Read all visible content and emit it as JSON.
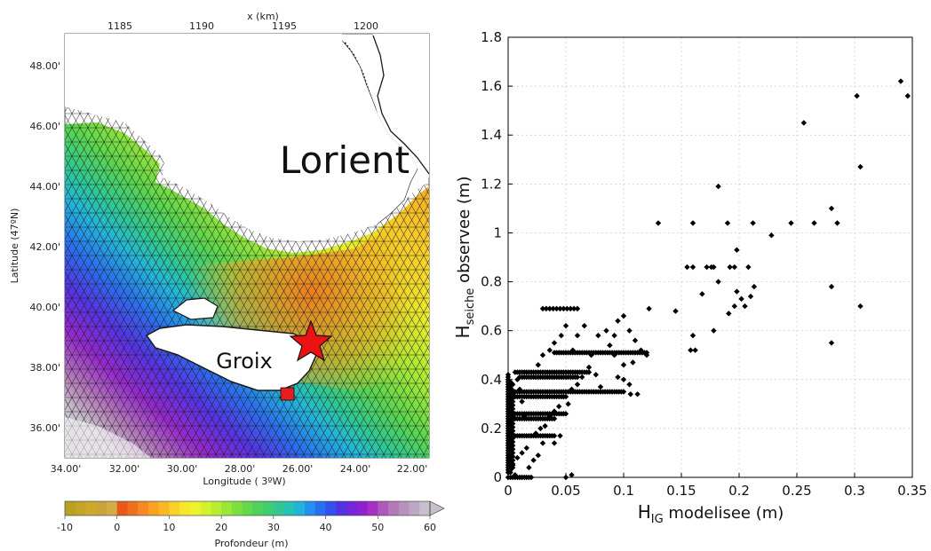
{
  "map_panel": {
    "x_km_label": "x (km)",
    "x_km_ticks": [
      "1185",
      "1190",
      "1195",
      "1200"
    ],
    "lat_ticks": [
      "48.00'",
      "46.00'",
      "44.00'",
      "42.00'",
      "40.00'",
      "38.00'",
      "36.00'"
    ],
    "lon_ticks": [
      "34.00'",
      "32.00'",
      "30.00'",
      "28.00'",
      "26.00'",
      "24.00'",
      "22.00'"
    ],
    "ylabel": "Latitude (47ºN)",
    "xlabel": "Longitude (  3ºW)",
    "place_labels": [
      "Lorient",
      "Groix"
    ],
    "colorbar": {
      "label": "Profondeur (m)",
      "ticks": [
        "-10",
        "0",
        "10",
        "20",
        "30",
        "40",
        "50",
        "60"
      ],
      "min": -10,
      "max": 60,
      "colors": [
        "#b8a020",
        "#c4a426",
        "#cfa82e",
        "#c9a43a",
        "#d2ac46",
        "#e8581a",
        "#f07020",
        "#f58a22",
        "#f9a222",
        "#fbb826",
        "#fad02a",
        "#f7e62c",
        "#eef22c",
        "#d6f22e",
        "#b8ee32",
        "#98e838",
        "#7ee040",
        "#62d84a",
        "#4ed25a",
        "#40cc70",
        "#32c690",
        "#28c2b4",
        "#22b4d8",
        "#2290ec",
        "#2a6ef0",
        "#3450ea",
        "#5034e4",
        "#7426da",
        "#9020d2",
        "#a630c4",
        "#ae58bc",
        "#b478b8",
        "#b892bc",
        "#bca8c2",
        "#c6c0cc"
      ]
    },
    "colors": {
      "mesh_line": "#1a1a1a",
      "star": "#ee1111",
      "square": "#e21e1e"
    }
  },
  "chart_data": {
    "type": "scatter",
    "xlabel": "H_IG modelisee (m)",
    "xlabel_main": "H",
    "xlabel_sub": "IG",
    "xlabel_rest": " modelisee (m)",
    "ylabel": "H_seiche observee (m)",
    "ylabel_main": "H",
    "ylabel_sub": "seiche",
    "ylabel_rest": " observee (m)",
    "xlim": [
      0,
      0.35
    ],
    "ylim": [
      0,
      1.8
    ],
    "xticks": [
      0,
      0.05,
      0.1,
      0.15,
      0.2,
      0.25,
      0.3,
      0.35
    ],
    "xtick_labels": [
      "0",
      "0.05",
      "0.1",
      "0.15",
      "0.2",
      "0.25",
      "0.3",
      "0.35"
    ],
    "yticks": [
      0,
      0.2,
      0.4,
      0.6,
      0.8,
      1,
      1.2,
      1.4,
      1.6,
      1.8
    ],
    "ytick_labels": [
      "0",
      "0.2",
      "0.4",
      "0.6",
      "0.8",
      "1",
      "1.2",
      "1.4",
      "1.6",
      "1.8"
    ],
    "grid": true,
    "marker_color": "#000000",
    "points": [
      [
        0.34,
        1.62
      ],
      [
        0.346,
        1.56
      ],
      [
        0.302,
        1.56
      ],
      [
        0.256,
        1.45
      ],
      [
        0.305,
        1.27
      ],
      [
        0.182,
        1.19
      ],
      [
        0.28,
        1.1
      ],
      [
        0.285,
        1.04
      ],
      [
        0.13,
        1.04
      ],
      [
        0.16,
        1.04
      ],
      [
        0.19,
        1.04
      ],
      [
        0.212,
        1.04
      ],
      [
        0.245,
        1.04
      ],
      [
        0.265,
        1.04
      ],
      [
        0.228,
        0.99
      ],
      [
        0.198,
        0.93
      ],
      [
        0.155,
        0.86
      ],
      [
        0.16,
        0.86
      ],
      [
        0.172,
        0.86
      ],
      [
        0.176,
        0.86
      ],
      [
        0.178,
        0.86
      ],
      [
        0.192,
        0.86
      ],
      [
        0.196,
        0.86
      ],
      [
        0.208,
        0.86
      ],
      [
        0.182,
        0.8
      ],
      [
        0.213,
        0.78
      ],
      [
        0.198,
        0.76
      ],
      [
        0.168,
        0.75
      ],
      [
        0.21,
        0.74
      ],
      [
        0.202,
        0.73
      ],
      [
        0.196,
        0.7
      ],
      [
        0.205,
        0.7
      ],
      [
        0.305,
        0.7
      ],
      [
        0.191,
        0.67
      ],
      [
        0.145,
        0.68
      ],
      [
        0.28,
        0.78
      ],
      [
        0.28,
        0.55
      ],
      [
        0.178,
        0.6
      ],
      [
        0.16,
        0.58
      ],
      [
        0.158,
        0.52
      ],
      [
        0.162,
        0.52
      ],
      [
        0.122,
        0.69
      ],
      [
        0.1,
        0.66
      ],
      [
        0.095,
        0.64
      ],
      [
        0.085,
        0.6
      ],
      [
        0.092,
        0.58
      ],
      [
        0.105,
        0.6
      ],
      [
        0.11,
        0.56
      ],
      [
        0.115,
        0.52
      ],
      [
        0.12,
        0.5
      ],
      [
        0.108,
        0.47
      ],
      [
        0.1,
        0.46
      ],
      [
        0.092,
        0.5
      ],
      [
        0.088,
        0.54
      ],
      [
        0.078,
        0.58
      ],
      [
        0.072,
        0.5
      ],
      [
        0.066,
        0.62
      ],
      [
        0.06,
        0.58
      ],
      [
        0.056,
        0.52
      ],
      [
        0.05,
        0.62
      ],
      [
        0.046,
        0.58
      ],
      [
        0.04,
        0.55
      ],
      [
        0.036,
        0.52
      ],
      [
        0.03,
        0.5
      ],
      [
        0.026,
        0.46
      ],
      [
        0.095,
        0.41
      ],
      [
        0.1,
        0.4
      ],
      [
        0.105,
        0.38
      ],
      [
        0.112,
        0.34
      ],
      [
        0.106,
        0.34
      ],
      [
        0.08,
        0.37
      ],
      [
        0.076,
        0.42
      ],
      [
        0.07,
        0.45
      ],
      [
        0.064,
        0.41
      ],
      [
        0.06,
        0.38
      ],
      [
        0.055,
        0.36
      ],
      [
        0.048,
        0.33
      ],
      [
        0.052,
        0.3
      ],
      [
        0.044,
        0.29
      ],
      [
        0.04,
        0.27
      ],
      [
        0.036,
        0.25
      ],
      [
        0.032,
        0.21
      ],
      [
        0.028,
        0.2
      ],
      [
        0.024,
        0.18
      ],
      [
        0.02,
        0.17
      ],
      [
        0.016,
        0.12
      ],
      [
        0.012,
        0.1
      ],
      [
        0.008,
        0.08
      ],
      [
        0.004,
        0.05
      ],
      [
        0.002,
        0.02
      ],
      [
        0.006,
        0.01
      ],
      [
        0.05,
        0.0
      ],
      [
        0.055,
        0.01
      ],
      [
        0.045,
        0.17
      ],
      [
        0.04,
        0.14
      ],
      [
        0.03,
        0.14
      ],
      [
        0.026,
        0.09
      ],
      [
        0.022,
        0.07
      ],
      [
        0.018,
        0.04
      ],
      [
        0.014,
        0.25
      ],
      [
        0.012,
        0.31
      ],
      [
        0.01,
        0.36
      ],
      [
        0.008,
        0.4
      ],
      [
        0.006,
        0.43
      ],
      [
        0.004,
        0.38
      ]
    ],
    "dense_rows": [
      {
        "y": 0.43,
        "x_start": 0.008,
        "x_end": 0.07,
        "step": 0.002
      },
      {
        "y": 0.41,
        "x_start": 0.01,
        "x_end": 0.06,
        "step": 0.002
      },
      {
        "y": 0.35,
        "x_start": 0.006,
        "x_end": 0.1,
        "step": 0.002
      },
      {
        "y": 0.33,
        "x_start": 0.006,
        "x_end": 0.05,
        "step": 0.002
      },
      {
        "y": 0.26,
        "x_start": 0.004,
        "x_end": 0.05,
        "step": 0.002
      },
      {
        "y": 0.24,
        "x_start": 0.004,
        "x_end": 0.04,
        "step": 0.002
      },
      {
        "y": 0.17,
        "x_start": 0.002,
        "x_end": 0.04,
        "step": 0.002
      },
      {
        "y": 0.51,
        "x_start": 0.04,
        "x_end": 0.12,
        "step": 0.002
      },
      {
        "y": 0.69,
        "x_start": 0.03,
        "x_end": 0.06,
        "step": 0.003
      },
      {
        "y": 0.0,
        "x_start": 0.0,
        "x_end": 0.02,
        "step": 0.002
      }
    ],
    "dense_columns": [
      {
        "x": 0.0,
        "y_start": 0.02,
        "y_end": 0.42,
        "step": 0.01
      },
      {
        "x": 0.002,
        "y_start": 0.03,
        "y_end": 0.4,
        "step": 0.012
      },
      {
        "x": 0.004,
        "y_start": 0.04,
        "y_end": 0.36,
        "step": 0.015
      }
    ]
  }
}
